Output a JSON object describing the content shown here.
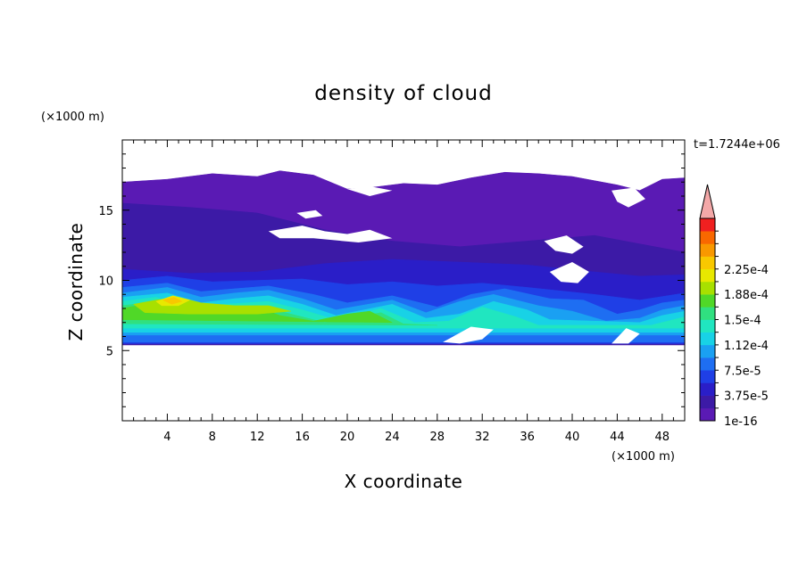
{
  "chart_data": {
    "type": "heatmap",
    "title": "density of cloud",
    "xlabel": "X coordinate",
    "ylabel": "Z coordinate",
    "x_unit": "(×1000 m)",
    "y_unit": "(×1000 m)",
    "time_label": "t=1.7244e+06",
    "xlim": [
      0,
      50
    ],
    "ylim": [
      0,
      20
    ],
    "x_ticks": [
      "4",
      "8",
      "12",
      "16",
      "20",
      "24",
      "28",
      "32",
      "36",
      "40",
      "44",
      "48"
    ],
    "y_ticks": [
      "5",
      "10",
      "15"
    ],
    "colorbar": {
      "labels": [
        "1e-16",
        "3.75e-5",
        "7.5e-5",
        "1.12e-4",
        "1.5e-4",
        "1.88e-4",
        "2.25e-4"
      ],
      "extend": "max",
      "colors": [
        "#5a1ab4",
        "#3c1aa6",
        "#2a1ec8",
        "#1f3fe6",
        "#1e6ef2",
        "#1aa0f2",
        "#18d2e6",
        "#20e6c0",
        "#30e080",
        "#50d828",
        "#a8e000",
        "#e8e800",
        "#f8c800",
        "#f89800",
        "#f86800",
        "#f02020"
      ],
      "extend_color": "#f4a8a8"
    },
    "cloud_regions": [
      {
        "level": 0,
        "poly": [
          [
            0,
            17
          ],
          [
            4,
            17.2
          ],
          [
            8,
            17.6
          ],
          [
            12,
            17.4
          ],
          [
            14,
            17.8
          ],
          [
            17,
            17.5
          ],
          [
            20,
            16.5
          ],
          [
            22,
            16.6
          ],
          [
            25,
            16.9
          ],
          [
            28,
            16.8
          ],
          [
            31,
            17.3
          ],
          [
            34,
            17.7
          ],
          [
            37,
            17.6
          ],
          [
            40,
            17.4
          ],
          [
            42,
            17.1
          ],
          [
            44,
            16.8
          ],
          [
            46,
            16.4
          ],
          [
            48,
            17.2
          ],
          [
            50,
            17.3
          ],
          [
            50,
            5.4
          ],
          [
            0,
            5.4
          ]
        ]
      },
      {
        "level": 1,
        "poly": [
          [
            0,
            15.5
          ],
          [
            6,
            15.2
          ],
          [
            12,
            14.8
          ],
          [
            18,
            13.6
          ],
          [
            24,
            12.8
          ],
          [
            30,
            12.4
          ],
          [
            36,
            12.8
          ],
          [
            42,
            13.2
          ],
          [
            46,
            12.6
          ],
          [
            50,
            12.0
          ],
          [
            50,
            5.4
          ],
          [
            0,
            5.4
          ]
        ]
      },
      {
        "level": 2,
        "poly": [
          [
            0,
            10.8
          ],
          [
            6,
            10.5
          ],
          [
            12,
            10.6
          ],
          [
            18,
            11.2
          ],
          [
            24,
            11.5
          ],
          [
            30,
            11.3
          ],
          [
            36,
            11.1
          ],
          [
            42,
            10.6
          ],
          [
            46,
            10.3
          ],
          [
            50,
            10.4
          ],
          [
            50,
            5.5
          ],
          [
            0,
            5.5
          ]
        ]
      },
      {
        "level": 3,
        "poly": [
          [
            0,
            10.0
          ],
          [
            4,
            10.3
          ],
          [
            8,
            9.9
          ],
          [
            12,
            10.0
          ],
          [
            16,
            10.1
          ],
          [
            20,
            9.7
          ],
          [
            24,
            9.9
          ],
          [
            28,
            9.6
          ],
          [
            32,
            9.8
          ],
          [
            36,
            9.5
          ],
          [
            42,
            9.0
          ],
          [
            46,
            8.6
          ],
          [
            50,
            9.1
          ],
          [
            50,
            5.5
          ],
          [
            0,
            5.5
          ]
        ]
      },
      {
        "level": 4,
        "poly": [
          [
            0,
            9.5
          ],
          [
            4,
            9.8
          ],
          [
            7,
            9.2
          ],
          [
            10,
            9.4
          ],
          [
            13,
            9.6
          ],
          [
            17,
            9.0
          ],
          [
            20,
            8.4
          ],
          [
            24,
            8.9
          ],
          [
            28,
            8.1
          ],
          [
            31,
            9.0
          ],
          [
            34,
            9.4
          ],
          [
            38,
            8.7
          ],
          [
            41,
            8.6
          ],
          [
            44,
            7.6
          ],
          [
            46,
            7.9
          ],
          [
            48,
            8.4
          ],
          [
            50,
            8.6
          ],
          [
            50,
            5.6
          ],
          [
            0,
            5.6
          ]
        ]
      },
      {
        "level": 5,
        "poly": [
          [
            0,
            9.1
          ],
          [
            4,
            9.5
          ],
          [
            7,
            8.8
          ],
          [
            10,
            9.1
          ],
          [
            13,
            9.3
          ],
          [
            16,
            8.7
          ],
          [
            19,
            7.9
          ],
          [
            24,
            8.6
          ],
          [
            27,
            7.7
          ],
          [
            30,
            8.5
          ],
          [
            33,
            9.0
          ],
          [
            37,
            8.2
          ],
          [
            40,
            7.8
          ],
          [
            43,
            7.1
          ],
          [
            46,
            7.3
          ],
          [
            48,
            7.9
          ],
          [
            50,
            8.2
          ],
          [
            50,
            6.1
          ],
          [
            0,
            6.1
          ]
        ]
      },
      {
        "level": 6,
        "poly": [
          [
            0,
            8.8
          ],
          [
            4,
            9.1
          ],
          [
            7,
            8.4
          ],
          [
            10,
            8.7
          ],
          [
            13,
            8.9
          ],
          [
            16,
            8.3
          ],
          [
            19,
            7.5
          ],
          [
            24,
            8.3
          ],
          [
            27,
            7.3
          ],
          [
            30,
            7.6
          ],
          [
            33,
            8.5
          ],
          [
            36,
            7.9
          ],
          [
            38,
            7.2
          ],
          [
            46,
            7.0
          ],
          [
            48,
            7.5
          ],
          [
            50,
            7.8
          ],
          [
            50,
            6.3
          ],
          [
            0,
            6.3
          ]
        ]
      },
      {
        "level": 7,
        "poly": [
          [
            0,
            8.5
          ],
          [
            3,
            8.8
          ],
          [
            6,
            8.0
          ],
          [
            9,
            8.3
          ],
          [
            13,
            8.5
          ],
          [
            16,
            7.9
          ],
          [
            19,
            7.2
          ],
          [
            23,
            8.0
          ],
          [
            26,
            7.0
          ],
          [
            29,
            7.1
          ],
          [
            32,
            8.1
          ],
          [
            35,
            7.4
          ],
          [
            37,
            6.8
          ],
          [
            47,
            6.8
          ],
          [
            49,
            7.2
          ],
          [
            50,
            7.4
          ],
          [
            50,
            6.6
          ],
          [
            0,
            6.6
          ]
        ]
      },
      {
        "level": 8,
        "poly": [
          [
            0,
            8.2
          ],
          [
            3,
            8.5
          ],
          [
            5,
            7.9
          ],
          [
            8,
            8.1
          ],
          [
            12,
            8.2
          ],
          [
            15,
            7.6
          ],
          [
            18,
            7.0
          ],
          [
            23,
            7.7
          ],
          [
            25,
            6.9
          ],
          [
            28,
            6.8
          ],
          [
            0,
            6.9
          ]
        ]
      },
      {
        "level": 9,
        "poly": [
          [
            0,
            8.0
          ],
          [
            2,
            8.3
          ],
          [
            4,
            8.6
          ],
          [
            6,
            8.0
          ],
          [
            9,
            8.0
          ],
          [
            12,
            8.1
          ],
          [
            14,
            7.5
          ],
          [
            17,
            7.1
          ],
          [
            20,
            7.6
          ],
          [
            22,
            7.8
          ],
          [
            24,
            7.0
          ],
          [
            0,
            7.2
          ]
        ]
      },
      {
        "level": 10,
        "poly": [
          [
            1,
            8.3
          ],
          [
            3,
            8.6
          ],
          [
            5,
            8.8
          ],
          [
            7,
            8.4
          ],
          [
            10,
            8.2
          ],
          [
            13,
            8.2
          ],
          [
            15,
            7.8
          ],
          [
            12,
            7.6
          ],
          [
            6,
            7.6
          ],
          [
            2,
            7.7
          ]
        ]
      },
      {
        "level": 11,
        "poly": [
          [
            3,
            8.5
          ],
          [
            4.5,
            8.9
          ],
          [
            6,
            8.6
          ],
          [
            5,
            8.2
          ],
          [
            3.5,
            8.2
          ]
        ]
      },
      {
        "level": 12,
        "poly": [
          [
            3.6,
            8.6
          ],
          [
            4.6,
            8.8
          ],
          [
            5.3,
            8.5
          ],
          [
            4.4,
            8.3
          ]
        ]
      }
    ],
    "gaps": [
      {
        "poly": [
          [
            13,
            13.5
          ],
          [
            16,
            13.9
          ],
          [
            18,
            13.5
          ],
          [
            20,
            13.3
          ],
          [
            22,
            13.6
          ],
          [
            24,
            13.0
          ],
          [
            21,
            12.7
          ],
          [
            17,
            13.0
          ],
          [
            14,
            13.0
          ]
        ]
      },
      {
        "poly": [
          [
            15.5,
            14.8
          ],
          [
            17.2,
            15.0
          ],
          [
            17.8,
            14.6
          ],
          [
            16.3,
            14.4
          ]
        ]
      },
      {
        "poly": [
          [
            20,
            16.5
          ],
          [
            22,
            16.0
          ],
          [
            24,
            16.4
          ],
          [
            22,
            16.7
          ]
        ]
      },
      {
        "poly": [
          [
            37.5,
            12.8
          ],
          [
            39.5,
            13.2
          ],
          [
            41,
            12.4
          ],
          [
            40,
            11.9
          ],
          [
            38.5,
            12.1
          ]
        ]
      },
      {
        "poly": [
          [
            38,
            10.6
          ],
          [
            40,
            11.3
          ],
          [
            41.5,
            10.6
          ],
          [
            40.5,
            9.8
          ],
          [
            39,
            9.9
          ]
        ]
      },
      {
        "poly": [
          [
            43.5,
            16.4
          ],
          [
            45.5,
            16.6
          ],
          [
            46.5,
            15.8
          ],
          [
            45,
            15.2
          ],
          [
            44,
            15.6
          ]
        ]
      },
      {
        "poly": [
          [
            28.5,
            5.6
          ],
          [
            31,
            6.7
          ],
          [
            33,
            6.5
          ],
          [
            32,
            5.8
          ],
          [
            30,
            5.5
          ]
        ]
      },
      {
        "poly": [
          [
            43.5,
            5.5
          ],
          [
            44.8,
            6.6
          ],
          [
            46,
            6.2
          ],
          [
            45,
            5.5
          ]
        ]
      }
    ]
  }
}
